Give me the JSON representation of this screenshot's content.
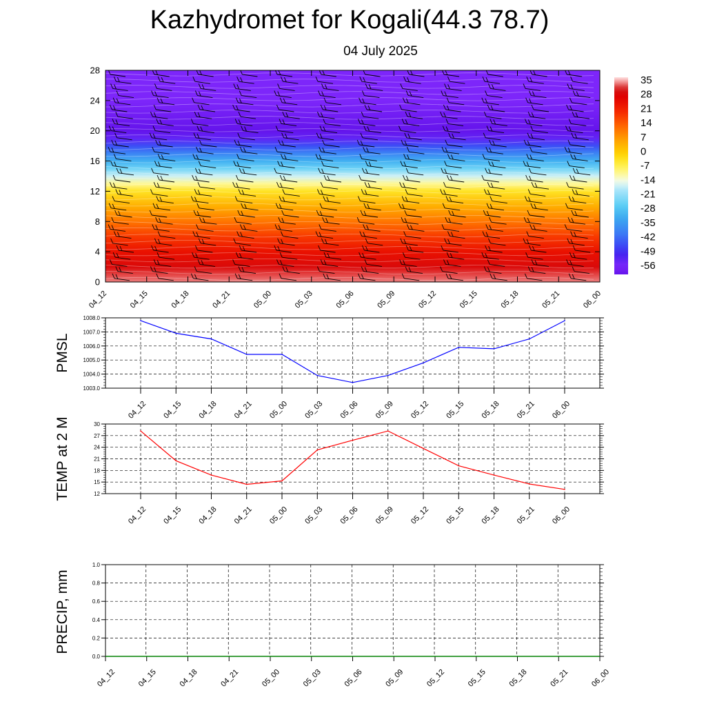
{
  "header": {
    "title": "Kazhydromet for Kogali(44.3 78.7)",
    "subtitle": "04 July 2025"
  },
  "time_labels": [
    "04_12",
    "04_15",
    "04_18",
    "04_21",
    "05_00",
    "05_03",
    "05_06",
    "05_09",
    "05_12",
    "05_15",
    "05_18",
    "05_21",
    "06_00"
  ],
  "chart_data": [
    {
      "type": "heatmap",
      "title": "",
      "ylim": [
        0,
        28
      ],
      "yticks": [
        0,
        4,
        8,
        12,
        16,
        20,
        24,
        28
      ],
      "x": [
        "04_12",
        "04_15",
        "04_18",
        "04_21",
        "05_00",
        "05_03",
        "05_06",
        "05_09",
        "05_12",
        "05_15",
        "05_18",
        "05_21",
        "06_00"
      ],
      "temperature_profile": {
        "y": [
          0,
          2,
          4,
          6,
          8,
          10,
          12,
          13,
          14,
          15,
          16,
          17,
          18,
          19,
          20,
          22,
          24,
          28
        ],
        "values": [
          35,
          30,
          25,
          19,
          12,
          5,
          -3,
          -10,
          -16,
          -24,
          -31,
          -38,
          -45,
          -53,
          -60,
          -58,
          -56,
          -56
        ]
      },
      "colorbar": {
        "labels": [
          "35",
          "28",
          "21",
          "14",
          "7",
          "0",
          "-7",
          "-14",
          "-21",
          "-28",
          "-35",
          "-42",
          "-49",
          "-56"
        ],
        "range": [
          -60,
          38
        ]
      },
      "wind_barbs": true
    },
    {
      "type": "line",
      "ylabel": "PMSL",
      "ylim": [
        1003.0,
        1008.0
      ],
      "yticks": [
        "1003.0",
        "1004.0",
        "1005.0",
        "1006.0",
        "1007.0",
        "1008.0"
      ],
      "x": [
        "04_12",
        "04_15",
        "04_18",
        "04_21",
        "05_00",
        "05_03",
        "05_06",
        "05_09",
        "05_12",
        "05_15",
        "05_18",
        "05_21",
        "06_00"
      ],
      "values": [
        1007.8,
        1006.9,
        1006.5,
        1005.4,
        1005.4,
        1003.9,
        1003.4,
        1003.9,
        1004.8,
        1005.9,
        1005.8,
        1006.5,
        1007.8
      ],
      "color": "#0000ff",
      "grid": true
    },
    {
      "type": "line",
      "ylabel": "TEMP at 2 M",
      "ylim": [
        12,
        30
      ],
      "yticks": [
        "12",
        "15",
        "18",
        "21",
        "24",
        "27",
        "30"
      ],
      "x": [
        "04_12",
        "04_15",
        "04_18",
        "04_21",
        "05_00",
        "05_03",
        "05_06",
        "05_09",
        "05_12",
        "05_15",
        "05_18",
        "05_21",
        "06_00"
      ],
      "values": [
        28.2,
        20.5,
        16.8,
        14.4,
        15.3,
        23.3,
        25.8,
        28.2,
        23.7,
        19.2,
        16.8,
        14.5,
        13.1
      ],
      "color": "#ff0000",
      "grid": true
    },
    {
      "type": "line",
      "ylabel": "PRECIP, mm",
      "ylim": [
        0.0,
        1.0
      ],
      "yticks": [
        "0.0",
        "0.2",
        "0.4",
        "0.6",
        "0.8",
        "1.0"
      ],
      "x": [
        "04_12",
        "04_15",
        "04_18",
        "04_21",
        "05_00",
        "05_03",
        "05_06",
        "05_09",
        "05_12",
        "05_15",
        "05_18",
        "05_21",
        "06_00"
      ],
      "values": [
        0,
        0,
        0,
        0,
        0,
        0,
        0,
        0,
        0,
        0,
        0,
        0,
        0
      ],
      "color": "#008000",
      "grid": true
    }
  ]
}
